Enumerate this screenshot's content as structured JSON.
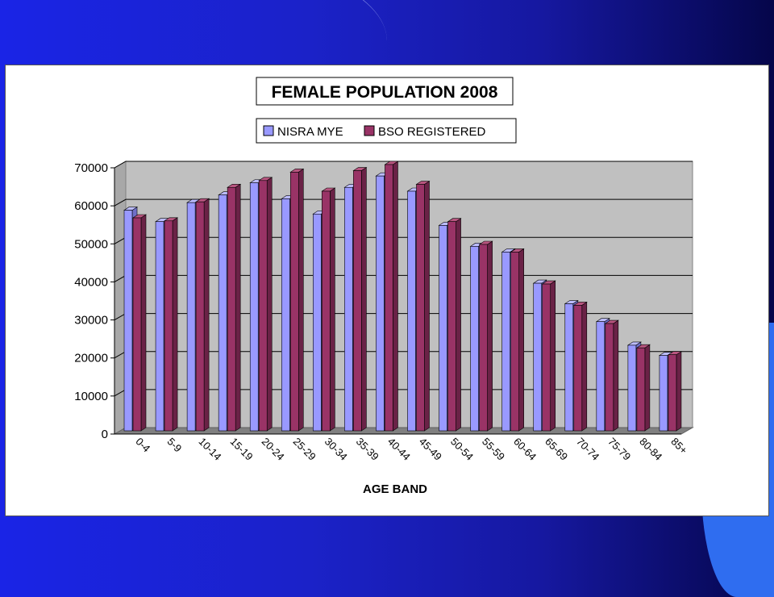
{
  "colors": {
    "series1_front": "#9999ff",
    "series1_side": "#6f6fc8",
    "series1_top": "#bcbcff",
    "series2_front": "#993366",
    "series2_side": "#6a2246",
    "series2_top": "#b8557f",
    "plot_back": "#c0c0c0",
    "floor": "#808080"
  },
  "chart_data": {
    "type": "bar",
    "title": "FEMALE POPULATION 2008",
    "xlabel": "AGE BAND",
    "ylabel": "",
    "ylim": [
      0,
      70000
    ],
    "yticks": [
      "0",
      "10000",
      "20000",
      "30000",
      "40000",
      "50000",
      "60000",
      "70000"
    ],
    "legend_position": "top",
    "grid": true,
    "categories": [
      "0-4",
      "5-9",
      "10-14",
      "15-19",
      "20-24",
      "25-29",
      "30-34",
      "35-39",
      "40-44",
      "45-49",
      "50-54",
      "55-59",
      "60-64",
      "65-69",
      "70-74",
      "75-79",
      "80-84",
      "85+"
    ],
    "series": [
      {
        "name": "NISRA MYE",
        "values": [
          58000,
          55000,
          60000,
          62000,
          65200,
          61000,
          57000,
          64000,
          67000,
          63000,
          54000,
          48500,
          47000,
          38800,
          33400,
          28700,
          22500,
          19800
        ]
      },
      {
        "name": "BSO REGISTERED",
        "values": [
          56000,
          55200,
          60200,
          64000,
          65800,
          68000,
          63000,
          68400,
          70000,
          64800,
          55000,
          49000,
          47000,
          38600,
          33000,
          28200,
          21800,
          20000
        ]
      }
    ]
  }
}
